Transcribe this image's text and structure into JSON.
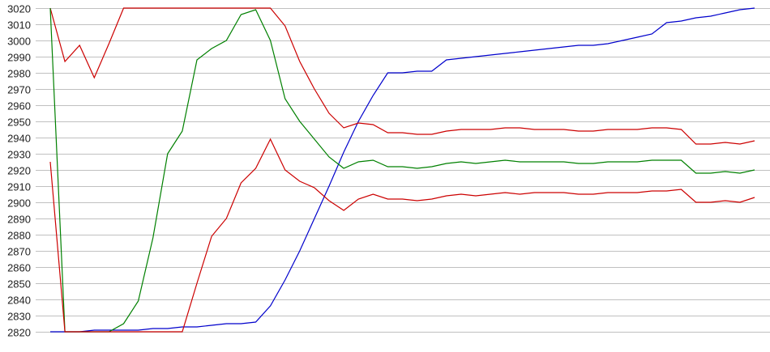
{
  "chart_data": {
    "type": "line",
    "title": "",
    "xlabel": "",
    "ylabel": "",
    "ylim": [
      2820,
      3020
    ],
    "y_ticks": [
      "3020",
      "3010",
      "3000",
      "2990",
      "2980",
      "2970",
      "2960",
      "2950",
      "2940",
      "2930",
      "2920",
      "2910",
      "2900",
      "2890",
      "2880",
      "2870",
      "2860",
      "2850",
      "2840",
      "2830",
      "2820"
    ],
    "grid": "horizontal",
    "legend": "none",
    "x": [
      0,
      1,
      2,
      3,
      4,
      5,
      6,
      7,
      8,
      9,
      10,
      11,
      12,
      13,
      14,
      15,
      16,
      17,
      18,
      19,
      20,
      21,
      22,
      23,
      24,
      25,
      26,
      27,
      28,
      29,
      30,
      31,
      32,
      33,
      34,
      35,
      36,
      37,
      38,
      39,
      40,
      41,
      42,
      43,
      44,
      45,
      46,
      47,
      48
    ],
    "series": [
      {
        "color": "#0000cc",
        "values": [
          2820,
          2820,
          2820,
          2821,
          2821,
          2821,
          2821,
          2822,
          2822,
          2823,
          2823,
          2824,
          2825,
          2825,
          2826,
          2836,
          2852,
          2870,
          2890,
          2910,
          2931,
          2950,
          2966,
          2980,
          2980,
          2981,
          2981,
          2988,
          2989,
          2990,
          2991,
          2992,
          2993,
          2994,
          2995,
          2996,
          2997,
          2997,
          2998,
          3000,
          3002,
          3004,
          3011,
          3012,
          3014,
          3015,
          3017,
          3019,
          3020
        ]
      },
      {
        "color": "#cc0000",
        "values": [
          3020,
          2987,
          2997,
          2977,
          2998,
          3020,
          3020,
          3020,
          3020,
          3020,
          3020,
          3020,
          3020,
          3020,
          3020,
          3020,
          3009,
          2987,
          2970,
          2955,
          2946,
          2949,
          2948,
          2943,
          2943,
          2942,
          2942,
          2944,
          2945,
          2945,
          2945,
          2946,
          2946,
          2945,
          2945,
          2945,
          2944,
          2944,
          2945,
          2945,
          2945,
          2946,
          2946,
          2945,
          2936,
          2936,
          2937,
          2936,
          2938
        ]
      },
      {
        "color": "#008000",
        "values": [
          3020,
          2820,
          2820,
          2820,
          2820,
          2825,
          2839,
          2878,
          2930,
          2944,
          2988,
          2995,
          3000,
          3016,
          3019,
          3000,
          2964,
          2950,
          2939,
          2928,
          2921,
          2925,
          2926,
          2922,
          2922,
          2921,
          2922,
          2924,
          2925,
          2924,
          2925,
          2926,
          2925,
          2925,
          2925,
          2925,
          2924,
          2924,
          2925,
          2925,
          2925,
          2926,
          2926,
          2926,
          2918,
          2918,
          2919,
          2918,
          2920
        ]
      },
      {
        "color": "#cc0000",
        "values": [
          2925,
          2820,
          2820,
          2820,
          2820,
          2820,
          2820,
          2820,
          2820,
          2820,
          2850,
          2879,
          2890,
          2912,
          2921,
          2939,
          2920,
          2913,
          2909,
          2901,
          2895,
          2902,
          2905,
          2902,
          2902,
          2901,
          2902,
          2904,
          2905,
          2904,
          2905,
          2906,
          2905,
          2906,
          2906,
          2906,
          2905,
          2905,
          2906,
          2906,
          2906,
          2907,
          2907,
          2908,
          2900,
          2900,
          2901,
          2900,
          2903
        ]
      }
    ]
  }
}
